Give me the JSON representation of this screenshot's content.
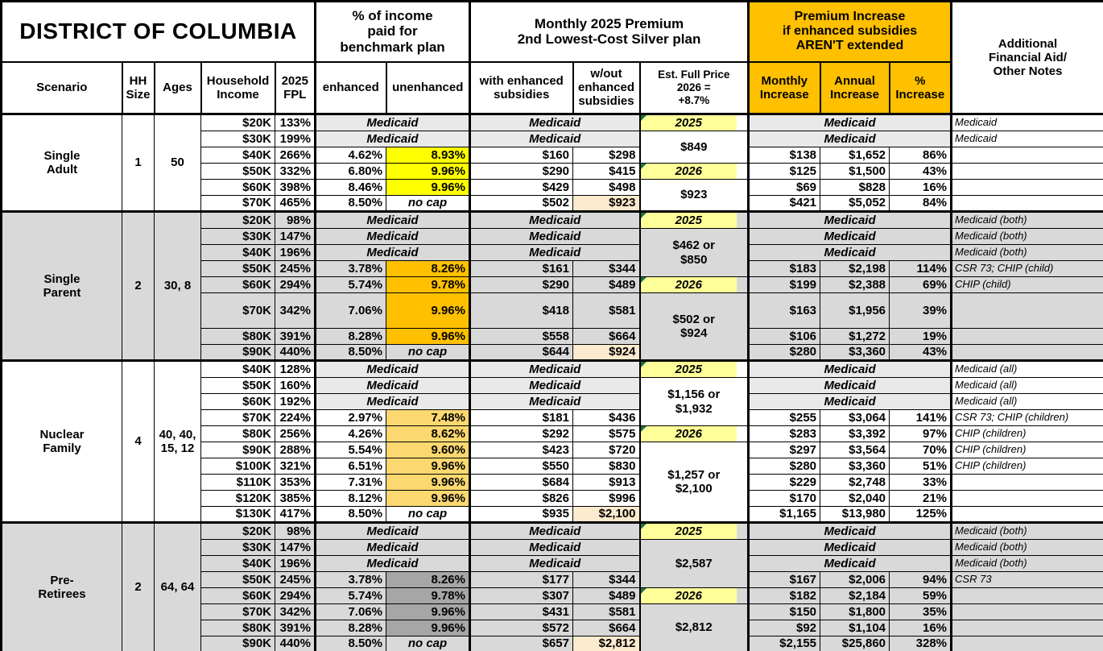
{
  "labels": {
    "medicaid": "Medicaid"
  },
  "colors": {
    "header_orange": "#FFC000",
    "year_yellow": "#FFFF99",
    "triangle_green": "#1E7145",
    "cream_highlight": "#FBEACD",
    "section_gray": "#D9D9D9",
    "medicaid_tint": "#E9E9E9",
    "single_adult_highlight": "#FFFF00",
    "single_parent_highlight": "#FFC000",
    "nuclear_family_highlight": "#FCD870",
    "pre_retirees_highlight": "#A6A6A6"
  },
  "header": {
    "title": "DISTRICT OF COLUMBIA",
    "group_income": "% of income\npaid for\nbenchmark plan",
    "group_premium": "Monthly 2025 Premium\n2nd Lowest-Cost Silver plan",
    "group_increase": "Premium Increase\nif enhanced subsidies\nAREN'T extended",
    "notes_header": "Additional\nFinancial Aid/\nOther Notes",
    "columns": {
      "scenario": "Scenario",
      "hh_size": "HH\nSize",
      "ages": "Ages",
      "income": "Household\nIncome",
      "fpl": "2025\nFPL",
      "enhanced": "enhanced",
      "unenhanced": "unenhanced",
      "with_sub": "with enhanced\nsubsidies",
      "without_sub": "w/out\nenhanced\nsubsidies",
      "est_full": "Est. Full Price\n2026 =\n+8.7%",
      "monthly": "Monthly\nIncrease",
      "annual": "Annual\nIncrease",
      "pct": "%\nIncrease"
    }
  },
  "sections": [
    {
      "id": "single-adult",
      "scenario": "Single\nAdult",
      "hh_size": "1",
      "ages": "50",
      "bg": "#FFFFFF",
      "medicaid_bg": "#E9E9E9",
      "highlight": "#FFFF00",
      "est_full": [
        {
          "label": "2025",
          "year": true,
          "span": 1
        },
        {
          "label": "$849",
          "span": 2
        },
        {
          "label": "2026",
          "year": true,
          "span": 1
        },
        {
          "label": "$923",
          "span": 2
        }
      ],
      "rows": [
        {
          "income": "$20K",
          "fpl": "133%",
          "medicaid": true,
          "note": "Medicaid"
        },
        {
          "income": "$30K",
          "fpl": "199%",
          "medicaid": true,
          "note": "Medicaid"
        },
        {
          "income": "$40K",
          "fpl": "266%",
          "enhanced": "4.62%",
          "unenhanced": "8.93%",
          "with_sub": "$160",
          "without_sub": "$298",
          "monthly": "$138",
          "annual": "$1,652",
          "pct": "86%",
          "note": ""
        },
        {
          "income": "$50K",
          "fpl": "332%",
          "enhanced": "6.80%",
          "unenhanced": "9.96%",
          "with_sub": "$290",
          "without_sub": "$415",
          "monthly": "$125",
          "annual": "$1,500",
          "pct": "43%",
          "note": ""
        },
        {
          "income": "$60K",
          "fpl": "398%",
          "enhanced": "8.46%",
          "unenhanced": "9.96%",
          "with_sub": "$429",
          "without_sub": "$498",
          "monthly": "$69",
          "annual": "$828",
          "pct": "16%",
          "note": ""
        },
        {
          "income": "$70K",
          "fpl": "465%",
          "enhanced": "8.50%",
          "unenhanced": "no cap",
          "nocap": true,
          "with_sub": "$502",
          "without_sub": "$923",
          "wo_hl": true,
          "monthly": "$421",
          "annual": "$5,052",
          "pct": "84%",
          "note": ""
        }
      ]
    },
    {
      "id": "single-parent",
      "scenario": "Single\nParent",
      "hh_size": "2",
      "ages": "30, 8",
      "bg": "#D9D9D9",
      "medicaid_bg": "#D9D9D9",
      "highlight": "#FFC000",
      "est_full": [
        {
          "label": "2025",
          "year": true,
          "span": 1
        },
        {
          "label": "$462 or\n$850",
          "span": 3
        },
        {
          "label": "2026",
          "year": true,
          "span": 1
        },
        {
          "label": "$502 or\n$924",
          "span": 3
        }
      ],
      "rows": [
        {
          "income": "$20K",
          "fpl": "98%",
          "medicaid": true,
          "note": "Medicaid (both)"
        },
        {
          "income": "$30K",
          "fpl": "147%",
          "medicaid": true,
          "note": "Medicaid (both)"
        },
        {
          "income": "$40K",
          "fpl": "196%",
          "medicaid": true,
          "note": "Medicaid (both)"
        },
        {
          "income": "$50K",
          "fpl": "245%",
          "enhanced": "3.78%",
          "unenhanced": "8.26%",
          "with_sub": "$161",
          "without_sub": "$344",
          "monthly": "$183",
          "annual": "$2,198",
          "pct": "114%",
          "note": "CSR 73; CHIP (child)"
        },
        {
          "income": "$60K",
          "fpl": "294%",
          "enhanced": "5.74%",
          "unenhanced": "9.78%",
          "with_sub": "$290",
          "without_sub": "$489",
          "monthly": "$199",
          "annual": "$2,388",
          "pct": "69%",
          "note": "CHIP (child)"
        },
        {
          "income": "$70K",
          "fpl": "342%",
          "enhanced": "7.06%",
          "unenhanced": "9.96%",
          "with_sub": "$418",
          "without_sub": "$581",
          "monthly": "$163",
          "annual": "$1,956",
          "pct": "39%",
          "note": "",
          "h": 44
        },
        {
          "income": "$80K",
          "fpl": "391%",
          "enhanced": "8.28%",
          "unenhanced": "9.96%",
          "with_sub": "$558",
          "without_sub": "$664",
          "monthly": "$106",
          "annual": "$1,272",
          "pct": "19%",
          "note": ""
        },
        {
          "income": "$90K",
          "fpl": "440%",
          "enhanced": "8.50%",
          "unenhanced": "no cap",
          "nocap": true,
          "with_sub": "$644",
          "without_sub": "$924",
          "wo_hl": true,
          "monthly": "$280",
          "annual": "$3,360",
          "pct": "43%",
          "note": ""
        }
      ]
    },
    {
      "id": "nuclear-family",
      "scenario": "Nuclear\nFamily",
      "hh_size": "4",
      "ages": "40, 40,\n15, 12",
      "bg": "#FFFFFF",
      "medicaid_bg": "#E9E9E9",
      "highlight": "#FCD870",
      "est_full": [
        {
          "label": "2025",
          "year": true,
          "span": 1
        },
        {
          "label": "$1,156 or\n$1,932",
          "span": 3
        },
        {
          "label": "2026",
          "year": true,
          "span": 1
        },
        {
          "label": "$1,257 or\n$2,100",
          "span": 5
        }
      ],
      "rows": [
        {
          "income": "$40K",
          "fpl": "128%",
          "medicaid": true,
          "note": "Medicaid (all)"
        },
        {
          "income": "$50K",
          "fpl": "160%",
          "medicaid": true,
          "note": "Medicaid (all)"
        },
        {
          "income": "$60K",
          "fpl": "192%",
          "medicaid": true,
          "note": "Medicaid (all)"
        },
        {
          "income": "$70K",
          "fpl": "224%",
          "enhanced": "2.97%",
          "unenhanced": "7.48%",
          "with_sub": "$181",
          "without_sub": "$436",
          "monthly": "$255",
          "annual": "$3,064",
          "pct": "141%",
          "note": "CSR 73; CHIP (children)"
        },
        {
          "income": "$80K",
          "fpl": "256%",
          "enhanced": "4.26%",
          "unenhanced": "8.62%",
          "with_sub": "$292",
          "without_sub": "$575",
          "monthly": "$283",
          "annual": "$3,392",
          "pct": "97%",
          "note": "CHIP (children)"
        },
        {
          "income": "$90K",
          "fpl": "288%",
          "enhanced": "5.54%",
          "unenhanced": "9.60%",
          "with_sub": "$423",
          "without_sub": "$720",
          "monthly": "$297",
          "annual": "$3,564",
          "pct": "70%",
          "note": "CHIP (children)"
        },
        {
          "income": "$100K",
          "fpl": "321%",
          "enhanced": "6.51%",
          "unenhanced": "9.96%",
          "with_sub": "$550",
          "without_sub": "$830",
          "monthly": "$280",
          "annual": "$3,360",
          "pct": "51%",
          "note": "CHIP (children)"
        },
        {
          "income": "$110K",
          "fpl": "353%",
          "enhanced": "7.31%",
          "unenhanced": "9.96%",
          "with_sub": "$684",
          "without_sub": "$913",
          "monthly": "$229",
          "annual": "$2,748",
          "pct": "33%",
          "note": ""
        },
        {
          "income": "$120K",
          "fpl": "385%",
          "enhanced": "8.12%",
          "unenhanced": "9.96%",
          "with_sub": "$826",
          "without_sub": "$996",
          "monthly": "$170",
          "annual": "$2,040",
          "pct": "21%",
          "note": ""
        },
        {
          "income": "$130K",
          "fpl": "417%",
          "enhanced": "8.50%",
          "unenhanced": "no cap",
          "nocap": true,
          "with_sub": "$935",
          "without_sub": "$2,100",
          "wo_hl": true,
          "monthly": "$1,165",
          "annual": "$13,980",
          "pct": "125%",
          "note": ""
        }
      ]
    },
    {
      "id": "pre-retirees",
      "scenario": "Pre-\nRetirees",
      "hh_size": "2",
      "ages": "64, 64",
      "bg": "#D9D9D9",
      "medicaid_bg": "#D9D9D9",
      "highlight": "#A6A6A6",
      "est_full": [
        {
          "label": "2025",
          "year": true,
          "span": 1
        },
        {
          "label": "$2,587",
          "span": 3
        },
        {
          "label": "2026",
          "year": true,
          "span": 1
        },
        {
          "label": "$2,812",
          "span": 3
        }
      ],
      "rows": [
        {
          "income": "$20K",
          "fpl": "98%",
          "medicaid": true,
          "note": "Medicaid (both)"
        },
        {
          "income": "$30K",
          "fpl": "147%",
          "medicaid": true,
          "note": "Medicaid (both)"
        },
        {
          "income": "$40K",
          "fpl": "196%",
          "medicaid": true,
          "note": "Medicaid (both)"
        },
        {
          "income": "$50K",
          "fpl": "245%",
          "enhanced": "3.78%",
          "unenhanced": "8.26%",
          "with_sub": "$177",
          "without_sub": "$344",
          "monthly": "$167",
          "annual": "$2,006",
          "pct": "94%",
          "note": "CSR 73"
        },
        {
          "income": "$60K",
          "fpl": "294%",
          "enhanced": "5.74%",
          "unenhanced": "9.78%",
          "with_sub": "$307",
          "without_sub": "$489",
          "monthly": "$182",
          "annual": "$2,184",
          "pct": "59%",
          "note": ""
        },
        {
          "income": "$70K",
          "fpl": "342%",
          "enhanced": "7.06%",
          "unenhanced": "9.96%",
          "with_sub": "$431",
          "without_sub": "$581",
          "monthly": "$150",
          "annual": "$1,800",
          "pct": "35%",
          "note": ""
        },
        {
          "income": "$80K",
          "fpl": "391%",
          "enhanced": "8.28%",
          "unenhanced": "9.96%",
          "with_sub": "$572",
          "without_sub": "$664",
          "monthly": "$92",
          "annual": "$1,104",
          "pct": "16%",
          "note": ""
        },
        {
          "income": "$90K",
          "fpl": "440%",
          "enhanced": "8.50%",
          "unenhanced": "no cap",
          "nocap": true,
          "with_sub": "$657",
          "without_sub": "$2,812",
          "wo_hl": true,
          "monthly": "$2,155",
          "annual": "$25,860",
          "pct": "328%",
          "note": ""
        }
      ]
    }
  ]
}
